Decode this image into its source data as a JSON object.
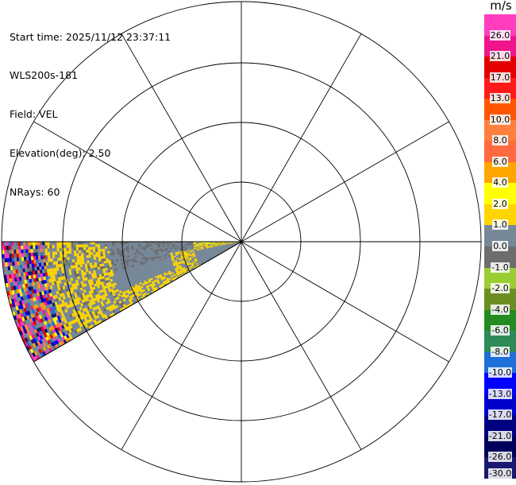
{
  "header": {
    "lines": [
      "Start time: 2025/11/12 23:37:11",
      "WLS200s-181",
      "Field: VEL",
      "Elevation(deg): 2.50",
      "NRays: 60"
    ]
  },
  "colorbar": {
    "unit": "m/s",
    "ticks": [
      "26.0",
      "21.0",
      "17.0",
      "13.0",
      "10.0",
      "8.0",
      "6.0",
      "4.0",
      "2.0",
      "1.0",
      "0.0",
      "-1.0",
      "-2.0",
      "-4.0",
      "-6.0",
      "-8.0",
      "-10.0",
      "-13.0",
      "-17.0",
      "-21.0",
      "-26.0",
      "-30.0"
    ],
    "colors": [
      "#ff3dbd",
      "#f0148c",
      "#e50000",
      "#ff1a1a",
      "#ff5500",
      "#ff7f3f",
      "#ff6a3f",
      "#ffa500",
      "#ffff00",
      "#ffd500",
      "#778899",
      "#6d6d6d",
      "#9acd32",
      "#6b8e23",
      "#228b22",
      "#2e8b57",
      "#1e6fd9",
      "#0000ff",
      "#0000cd",
      "#000080",
      "#00005a",
      "#191970"
    ]
  },
  "chart_data": {
    "type": "radar-ppi",
    "field": "VEL",
    "units": "m/s",
    "elevation_deg": 2.5,
    "n_rays": 60,
    "range_rings": 4,
    "spokes_deg": [
      0,
      30,
      60,
      90,
      120,
      150,
      180,
      210,
      240,
      270,
      300,
      330
    ],
    "sector_azimuth_deg": [
      240,
      270
    ],
    "sector_regions": [
      {
        "r_fraction": [
          0.0,
          0.27
        ],
        "value": 1.5,
        "note": "yellow near radar"
      },
      {
        "r_fraction": [
          0.27,
          0.55
        ],
        "value": 0.2,
        "note": "gray mixed"
      },
      {
        "r_fraction": [
          0.55,
          0.8
        ],
        "value": 3.0,
        "note": "yellow/gray mix"
      },
      {
        "r_fraction": [
          0.8,
          1.0
        ],
        "value": null,
        "note": "noisy multicolor"
      }
    ]
  }
}
